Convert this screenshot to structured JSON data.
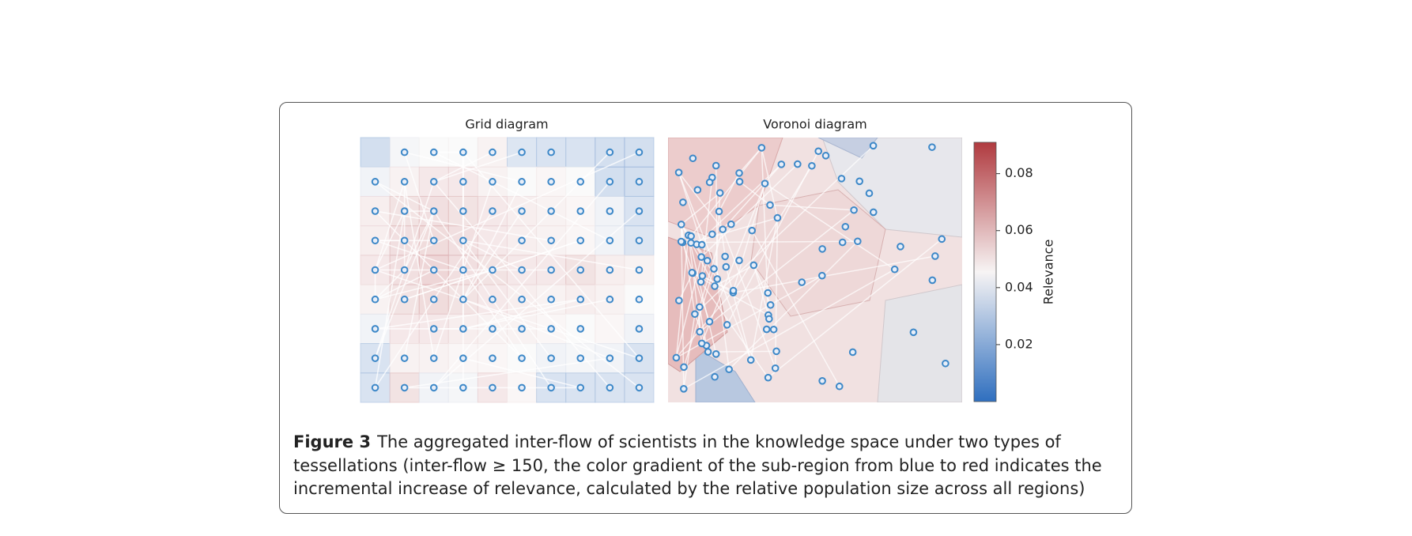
{
  "figure": {
    "panels": [
      {
        "title": "Grid diagram",
        "cells": [
          [
            0.025,
            0.042,
            0.045,
            0.045,
            0.05,
            0.03,
            0.028,
            0.028,
            0.025,
            0.025
          ],
          [
            0.04,
            0.05,
            0.055,
            0.055,
            0.05,
            0.045,
            0.048,
            0.045,
            0.025,
            0.025
          ],
          [
            0.052,
            0.058,
            0.06,
            0.058,
            0.055,
            0.052,
            0.05,
            0.048,
            0.04,
            0.028
          ],
          [
            0.052,
            0.06,
            0.062,
            0.06,
            0.055,
            0.052,
            0.05,
            0.048,
            0.04,
            0.03
          ],
          [
            0.055,
            0.06,
            0.065,
            0.06,
            0.058,
            0.055,
            0.055,
            0.058,
            0.052,
            0.05
          ],
          [
            0.05,
            0.058,
            0.062,
            0.058,
            0.055,
            0.052,
            0.05,
            0.052,
            0.05,
            0.045
          ],
          [
            0.04,
            0.055,
            0.055,
            0.052,
            0.05,
            0.05,
            0.048,
            0.045,
            0.048,
            0.04
          ],
          [
            0.028,
            0.05,
            0.05,
            0.048,
            0.048,
            0.045,
            0.04,
            0.042,
            0.04,
            0.028
          ],
          [
            0.028,
            0.058,
            0.04,
            0.042,
            0.055,
            0.048,
            0.028,
            0.028,
            0.028,
            0.028
          ]
        ]
      },
      {
        "title": "Voronoi diagram"
      }
    ],
    "colorbar": {
      "label": "Relevance",
      "lim": [
        0,
        0.091
      ],
      "ticks": [
        0.02,
        0.04,
        0.06,
        0.08
      ]
    },
    "caption": {
      "label": "Figure 3",
      "text": "The aggregated inter-flow of scientists in the knowledge space under two types of tessellations (inter-flow ≥ 150, the color gradient of the sub-region from blue to red indicates the incremental increase of relevance, calculated by the relative population size across all regions)"
    }
  }
}
